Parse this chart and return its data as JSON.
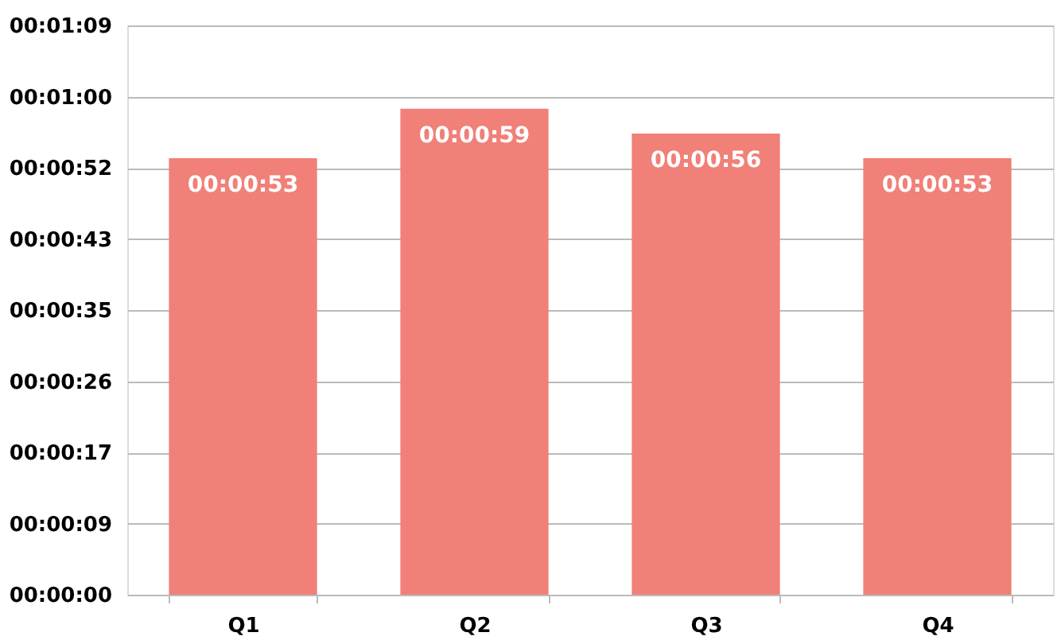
{
  "chart_data": {
    "type": "bar",
    "categories": [
      "Q1",
      "Q2",
      "Q3",
      "Q4"
    ],
    "values": [
      53,
      59,
      56,
      53
    ],
    "value_labels": [
      "00:00:53",
      "00:00:59",
      "00:00:56",
      "00:00:53"
    ],
    "color": "#f08078",
    "ylim": [
      0,
      69.12
    ],
    "yticks": [
      {
        "value": 0,
        "label": "00:00:00"
      },
      {
        "value": 8.64,
        "label": "00:00:09"
      },
      {
        "value": 17.28,
        "label": "00:00:17"
      },
      {
        "value": 25.92,
        "label": "00:00:26"
      },
      {
        "value": 34.56,
        "label": "00:00:35"
      },
      {
        "value": 43.2,
        "label": "00:00:43"
      },
      {
        "value": 51.84,
        "label": "00:00:52"
      },
      {
        "value": 60.48,
        "label": "00:01:00"
      },
      {
        "value": 69.12,
        "label": "00:01:09"
      }
    ],
    "grid": "y"
  }
}
